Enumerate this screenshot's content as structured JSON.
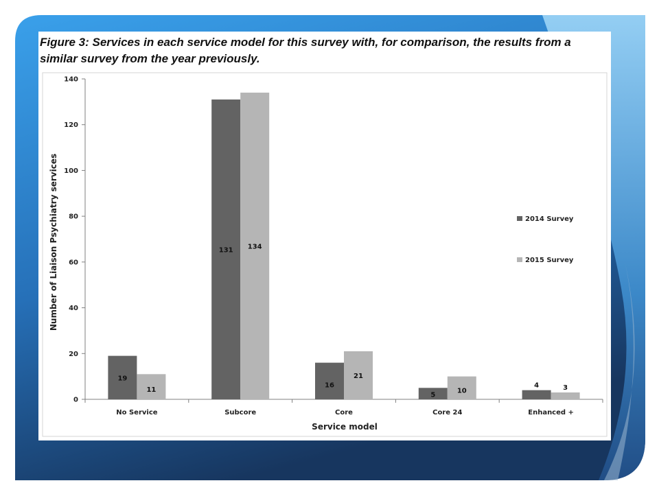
{
  "colors": {
    "series_2014": "#636363",
    "series_2015": "#b5b5b5",
    "slide_dark": "#1b3f6e",
    "slide_mid": "#2b7bc4",
    "slide_light": "#7cc3f2"
  },
  "chart_data": {
    "type": "bar",
    "title": "Figure 3: Services in each service model for this survey with, for comparison, the results from a similar survey from the year previously.",
    "xlabel": "Service model",
    "ylabel": "Number of Liaison Psychiatry services",
    "ylim": [
      0,
      140
    ],
    "yticks": [
      0,
      20,
      40,
      60,
      80,
      100,
      120,
      140
    ],
    "categories": [
      "No Service",
      "Subcore",
      "Core",
      "Core 24",
      "Enhanced +"
    ],
    "series": [
      {
        "name": "2014 Survey",
        "values": [
          19,
          131,
          16,
          5,
          4
        ]
      },
      {
        "name": "2015 Survey",
        "values": [
          11,
          134,
          21,
          10,
          3
        ]
      }
    ],
    "grid": false,
    "legend_position": "right"
  }
}
